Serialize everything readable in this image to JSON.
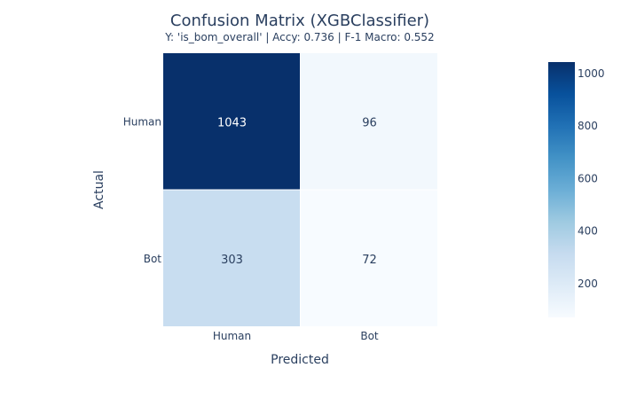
{
  "chart_data": {
    "type": "heatmap",
    "title": "Confusion Matrix (XGBClassifier)",
    "subtitle": "Y: 'is_bom_overall' | Accy: 0.736 | F-1 Macro: 0.552",
    "xlabel": "Predicted",
    "ylabel": "Actual",
    "x_categories": [
      "Human",
      "Bot"
    ],
    "y_categories": [
      "Human",
      "Bot"
    ],
    "z": [
      [
        1043,
        96
      ],
      [
        303,
        72
      ]
    ],
    "colorscale": "Blues",
    "colorbar": {
      "range": [
        72,
        1043
      ],
      "ticks": [
        200,
        400,
        600,
        800,
        1000
      ]
    }
  }
}
